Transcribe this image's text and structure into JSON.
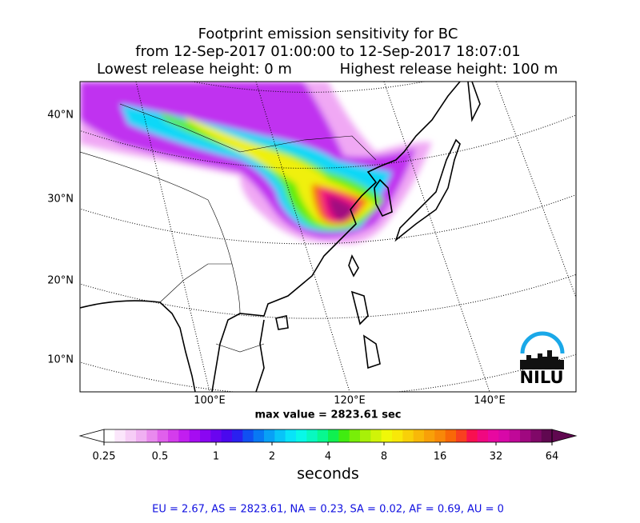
{
  "title": [
    "Footprint emission sensitivity for BC",
    "from 12-Sep-2017 01:00:00 to 12-Sep-2017 18:07:01"
  ],
  "release_low": "Lowest release height: 0 m",
  "release_high": "Highest release height: 100 m",
  "map": {
    "lat_labels": [
      "40°N",
      "30°N",
      "20°N",
      "10°N"
    ],
    "lon_labels": [
      "100°E",
      "120°E",
      "140°E"
    ]
  },
  "max_value": "max value = 2823.61 sec",
  "logo": "NILU",
  "chart_data": {
    "type": "colorbar",
    "log_scale": true,
    "xlim": [
      0.25,
      64
    ],
    "xticks": [
      0.25,
      0.5,
      1,
      2,
      4,
      8,
      16,
      32,
      64
    ],
    "xlabel": "seconds",
    "colors": [
      "#ffffff",
      "#fbe6fb",
      "#f6cdf6",
      "#f0b0f2",
      "#e98aee",
      "#e060ec",
      "#d43cec",
      "#c21ef0",
      "#a60cf2",
      "#8a06f2",
      "#6a04f0",
      "#4a08ee",
      "#2a20f0",
      "#1050f2",
      "#0878f4",
      "#08a0f6",
      "#08c4f8",
      "#08e4f8",
      "#08f8e8",
      "#08f8c0",
      "#08f890",
      "#10f050",
      "#40ec10",
      "#78ee08",
      "#a8f008",
      "#d0f408",
      "#f0f808",
      "#f8e808",
      "#f8d008",
      "#f8b808",
      "#f8a008",
      "#f88808",
      "#f86808",
      "#f84020",
      "#f81050",
      "#f00880",
      "#e808a0",
      "#d808a8",
      "#c00898",
      "#a00880",
      "#800868",
      "#600850"
    ]
  },
  "footer": "EU = 2.67,  AS = 2823.61,  NA = 0.23,  SA = 0.02,  AF = 0.69,  AU = 0"
}
